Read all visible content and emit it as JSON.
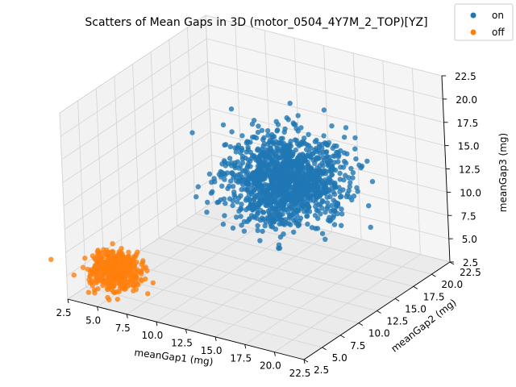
{
  "chart_data": {
    "type": "scatter",
    "projection": "3d",
    "title": "Scatters of Mean Gaps in 3D (motor_0504_4Y7M_2_TOP)[YZ]",
    "xlabel": "meanGap1 (mg)",
    "ylabel": "meanGap2 (mg)",
    "zlabel": "meanGap3 (mg)",
    "xlim": [
      2.5,
      22.5
    ],
    "ylim": [
      2.5,
      22.5
    ],
    "zlim": [
      2.5,
      22.5
    ],
    "ticks": [
      "2.5",
      "5.0",
      "7.5",
      "10.0",
      "12.5",
      "15.0",
      "17.5",
      "20.0",
      "22.5"
    ],
    "tick_values": [
      2.5,
      5.0,
      7.5,
      10.0,
      12.5,
      15.0,
      17.5,
      20.0,
      22.5
    ],
    "grid": true,
    "legend": {
      "placement": "top-right",
      "entries": [
        "on",
        "off"
      ]
    },
    "series": [
      {
        "name": "on",
        "color": "#1f77b4",
        "center": [
          14.5,
          13.5,
          13.3
        ],
        "spread": [
          2.0,
          2.2,
          2.0
        ],
        "points": [
          [
            14.5,
            13.5,
            13.3
          ],
          [
            17.2,
            15.8,
            18.9
          ],
          [
            12.1,
            11.2,
            17.6
          ],
          [
            16.8,
            16.5,
            10.2
          ],
          [
            11.9,
            10.3,
            9.1
          ],
          [
            18.6,
            17.4,
            14.2
          ],
          [
            13.0,
            16.9,
            19.4
          ],
          [
            15.9,
            10.1,
            8.7
          ],
          [
            10.8,
            14.8,
            15.6
          ],
          [
            19.1,
            13.2,
            12.3
          ],
          [
            12.7,
            12.9,
            11.8
          ],
          [
            16.1,
            14.1,
            16.2
          ],
          [
            13.6,
            15.3,
            12.1
          ],
          [
            15.2,
            12.4,
            14.9
          ],
          [
            14.0,
            13.9,
            10.9
          ]
        ]
      },
      {
        "name": "off",
        "color": "#ff7f0e",
        "center": [
          5.0,
          5.1,
          5.0
        ],
        "spread": [
          0.9,
          0.8,
          0.9
        ],
        "points": [
          [
            5.0,
            5.1,
            5.0
          ],
          [
            6.2,
            4.6,
            6.3
          ],
          [
            4.1,
            5.8,
            4.0
          ],
          [
            5.7,
            5.9,
            6.8
          ],
          [
            3.9,
            4.4,
            5.5
          ],
          [
            6.6,
            5.3,
            4.3
          ],
          [
            4.6,
            4.2,
            6.0
          ],
          [
            5.4,
            6.5,
            5.2
          ]
        ]
      }
    ]
  }
}
